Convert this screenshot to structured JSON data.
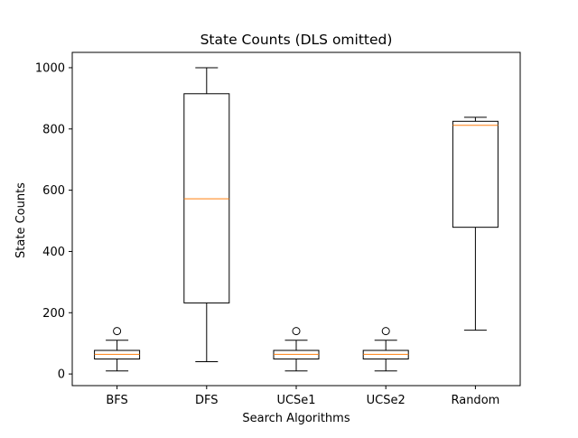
{
  "chart_data": {
    "type": "box",
    "title": "State Counts (DLS omitted)",
    "xlabel": "Search Algorithms",
    "ylabel": "State Counts",
    "ylim": [
      -38,
      1050
    ],
    "yticks": [
      0,
      200,
      400,
      600,
      800,
      1000
    ],
    "grid": false,
    "colors": {
      "box": "#000000",
      "median": "#ff7f0e"
    },
    "categories": [
      "BFS",
      "DFS",
      "UCSe1",
      "UCSe2",
      "Random"
    ],
    "boxes": [
      {
        "name": "BFS",
        "whisker_low": 10,
        "q1": 49,
        "median": 64,
        "q3": 77,
        "whisker_high": 110,
        "outliers": [
          140
        ]
      },
      {
        "name": "DFS",
        "whisker_low": 40,
        "q1": 232,
        "median": 572,
        "q3": 915,
        "whisker_high": 1000,
        "outliers": []
      },
      {
        "name": "UCSe1",
        "whisker_low": 10,
        "q1": 49,
        "median": 64,
        "q3": 77,
        "whisker_high": 110,
        "outliers": [
          140
        ]
      },
      {
        "name": "UCSe2",
        "whisker_low": 10,
        "q1": 49,
        "median": 64,
        "q3": 77,
        "whisker_high": 110,
        "outliers": [
          140
        ]
      },
      {
        "name": "Random",
        "whisker_low": 143,
        "q1": 479,
        "median": 812,
        "q3": 825,
        "whisker_high": 838,
        "outliers": []
      }
    ]
  }
}
